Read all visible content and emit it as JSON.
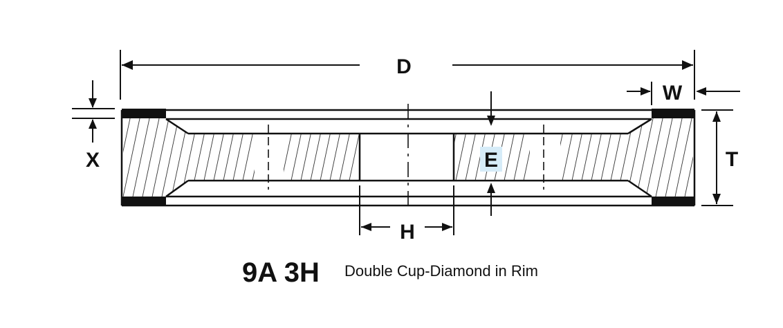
{
  "diagram": {
    "dimension_labels": {
      "D": "D",
      "W": "W",
      "X": "X",
      "T": "T",
      "E": "E",
      "H": "H"
    },
    "caption": {
      "code": "9A 3H",
      "description": "Double Cup-Diamond in Rim"
    },
    "colors": {
      "line": "#111111",
      "rim": "#111111",
      "e_highlight": "#d6ecf8",
      "background": "#ffffff"
    }
  }
}
